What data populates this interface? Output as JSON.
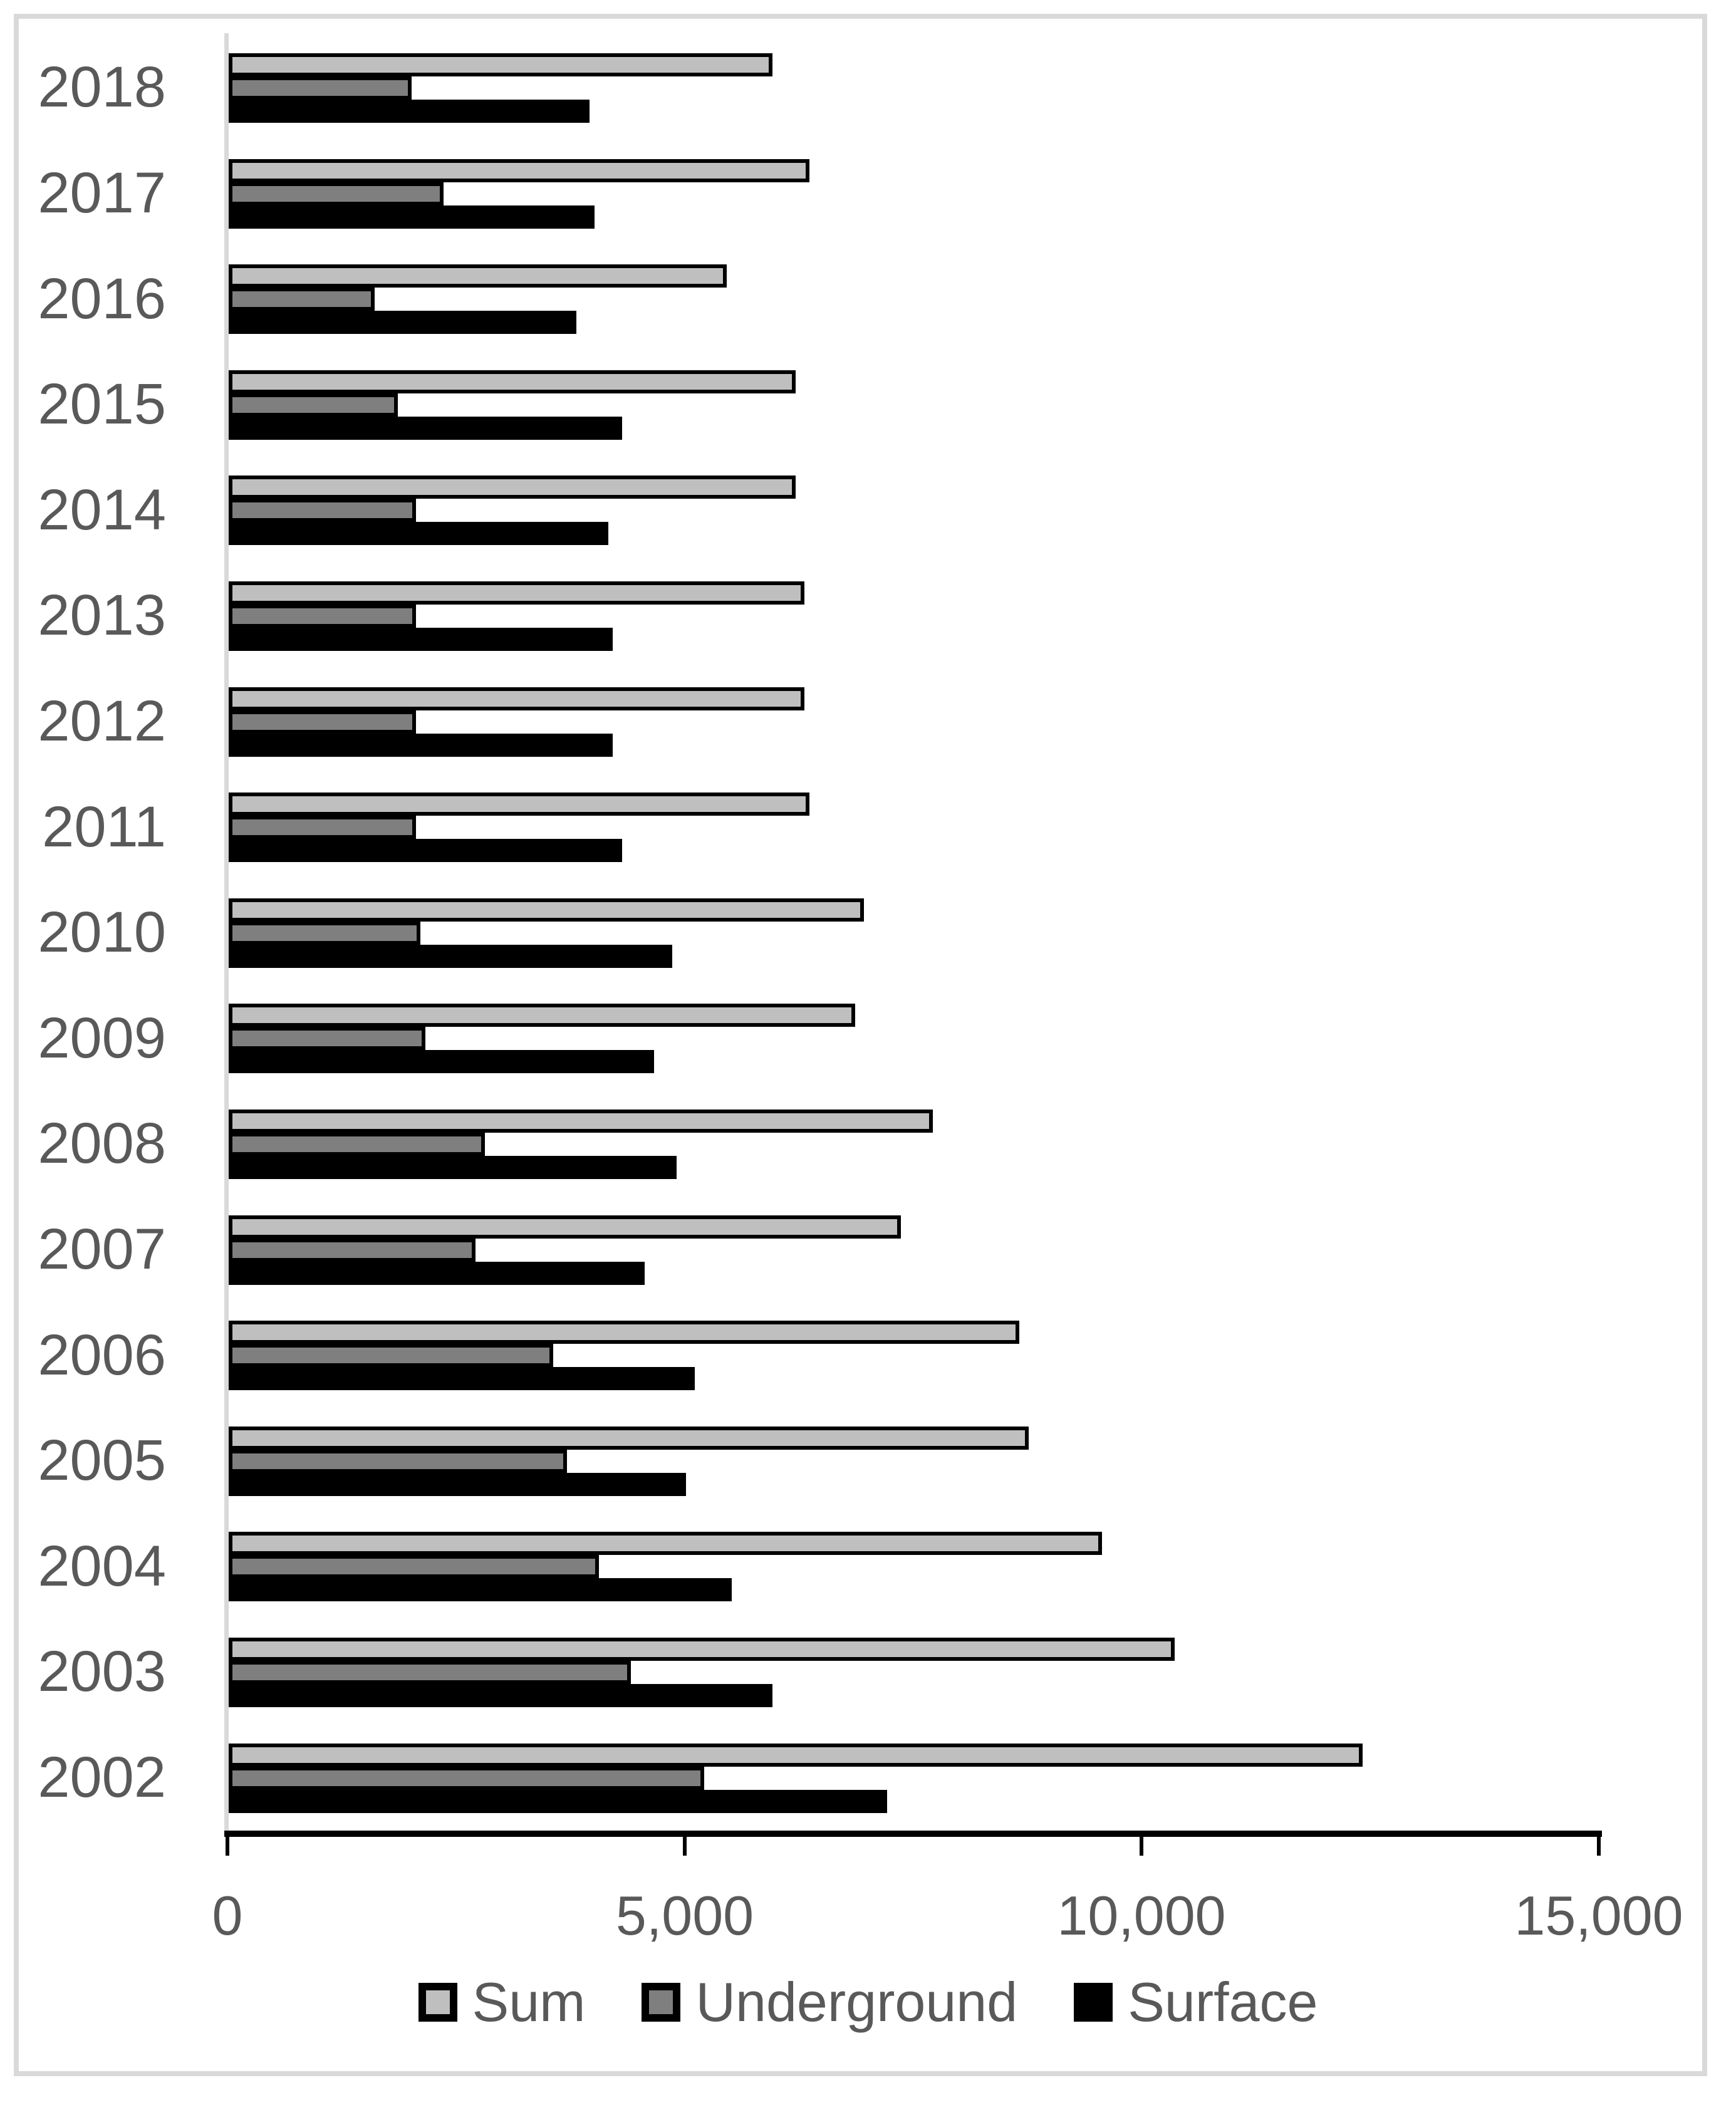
{
  "figure": {
    "background_color": "#ffffff",
    "frame_color": "#d9d9d9"
  },
  "chart_data": {
    "type": "bar",
    "orientation": "horizontal",
    "title": "",
    "xlabel": "",
    "ylabel": "",
    "grid": false,
    "categories": [
      "2018",
      "2017",
      "2016",
      "2015",
      "2014",
      "2013",
      "2012",
      "2011",
      "2010",
      "2009",
      "2008",
      "2007",
      "2006",
      "2005",
      "2004",
      "2003",
      "2002"
    ],
    "series": [
      {
        "name": "Sum",
        "color": "#bfbfbf",
        "border_color": "#000000",
        "values": [
          5950,
          6350,
          5450,
          6200,
          6200,
          6300,
          6300,
          6350,
          6950,
          6850,
          7700,
          7350,
          8650,
          8750,
          9550,
          10350,
          12400
        ]
      },
      {
        "name": "Underground",
        "color": "#7f7f7f",
        "border_color": "#000000",
        "values": [
          2000,
          2350,
          1600,
          1850,
          2050,
          2050,
          2050,
          2050,
          2100,
          2150,
          2800,
          2700,
          3550,
          3700,
          4050,
          4400,
          5200
        ]
      },
      {
        "name": "Surface",
        "color": "#000000",
        "border_color": "#000000",
        "values": [
          3950,
          4000,
          3800,
          4300,
          4150,
          4200,
          4200,
          4300,
          4850,
          4650,
          4900,
          4550,
          5100,
          5000,
          5500,
          5950,
          7200
        ]
      }
    ],
    "x_axis": {
      "min": 0,
      "max": 15000,
      "tick_values": [
        0,
        5000,
        10000,
        15000
      ],
      "tick_labels": [
        "0",
        "5,000",
        "10,000",
        "15,000"
      ]
    },
    "legend": {
      "position": "bottom",
      "labels": [
        "Sum",
        "Underground",
        "Surface"
      ]
    },
    "text_color": "#595959",
    "value_axis_line_color": "#000000",
    "category_axis_line_color": "#d9d9d9"
  }
}
